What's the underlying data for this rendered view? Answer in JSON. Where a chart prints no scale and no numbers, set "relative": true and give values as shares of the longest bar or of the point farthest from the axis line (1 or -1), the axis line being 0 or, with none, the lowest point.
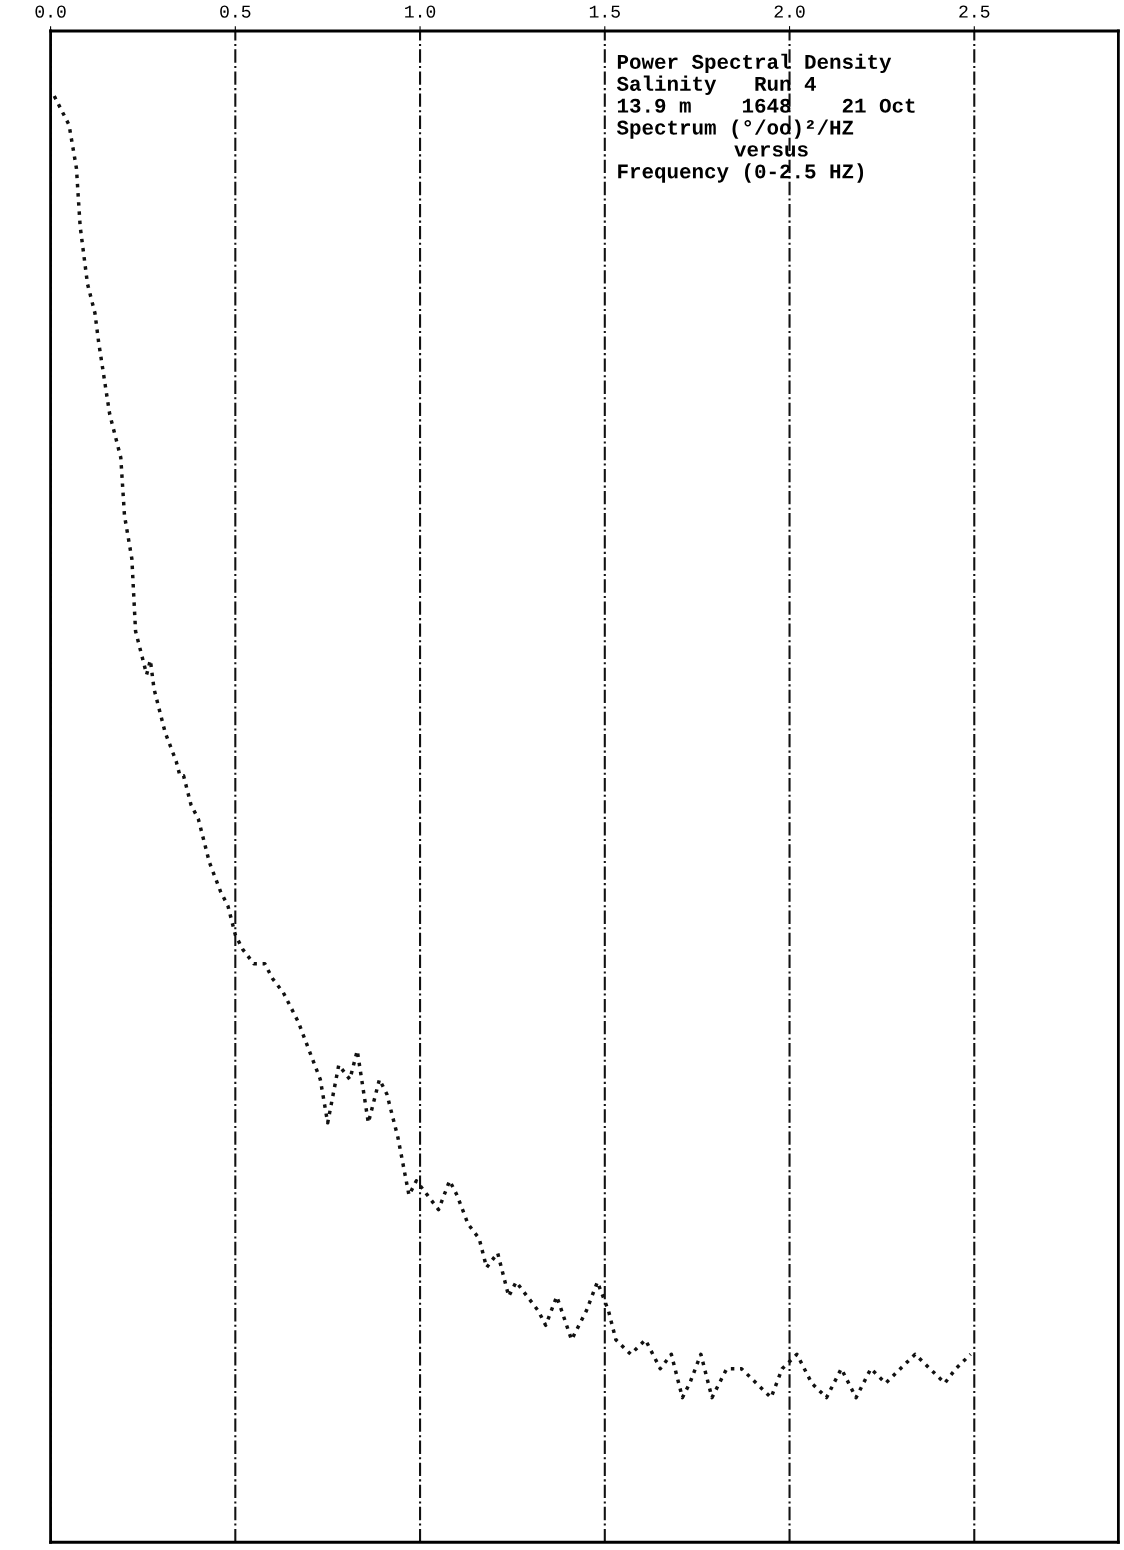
{
  "chart_data": {
    "type": "line",
    "title": "Power Spectral Density",
    "annotations": [
      "Salinity   Run 4",
      "13.9 m    1648    21 Oct",
      "Spectrum (°/oo)²/HZ",
      "versus",
      "Frequency (0-2.5 HZ)"
    ],
    "relative": true,
    "x": [
      0.01,
      0.03,
      0.05,
      0.07,
      0.08,
      0.1,
      0.12,
      0.13,
      0.16,
      0.17,
      0.19,
      0.2,
      0.22,
      0.23,
      0.24,
      0.26,
      0.27,
      0.28,
      0.3,
      0.31,
      0.34,
      0.35,
      0.36,
      0.38,
      0.4,
      0.43,
      0.46,
      0.48,
      0.5,
      0.52,
      0.55,
      0.58,
      0.6,
      0.63,
      0.67,
      0.7,
      0.73,
      0.75,
      0.78,
      0.81,
      0.83,
      0.86,
      0.89,
      0.91,
      0.94,
      0.97,
      0.99,
      1.02,
      1.05,
      1.08,
      1.1,
      1.13,
      1.16,
      1.18,
      1.21,
      1.24,
      1.26,
      1.29,
      1.32,
      1.34,
      1.37,
      1.41,
      1.45,
      1.48,
      1.51,
      1.53,
      1.57,
      1.61,
      1.65,
      1.68,
      1.71,
      1.73,
      1.76,
      1.79,
      1.83,
      1.87,
      1.91,
      1.95,
      1.98,
      2.02,
      2.06,
      2.1,
      2.14,
      2.18,
      2.22,
      2.26,
      2.3,
      2.34,
      2.38,
      2.42,
      2.45,
      2.49
    ],
    "series": [
      {
        "color": "#111111",
        "values": [
          1.0,
          0.99,
          0.98,
          0.95,
          0.91,
          0.87,
          0.85,
          0.83,
          0.78,
          0.77,
          0.75,
          0.71,
          0.68,
          0.63,
          0.62,
          0.6,
          0.61,
          0.59,
          0.57,
          0.56,
          0.54,
          0.53,
          0.53,
          0.51,
          0.5,
          0.47,
          0.45,
          0.44,
          0.42,
          0.41,
          0.4,
          0.4,
          0.39,
          0.38,
          0.36,
          0.34,
          0.32,
          0.29,
          0.33,
          0.32,
          0.34,
          0.29,
          0.32,
          0.31,
          0.28,
          0.24,
          0.25,
          0.24,
          0.23,
          0.25,
          0.24,
          0.22,
          0.21,
          0.19,
          0.2,
          0.17,
          0.18,
          0.17,
          0.16,
          0.15,
          0.17,
          0.14,
          0.16,
          0.18,
          0.16,
          0.14,
          0.13,
          0.14,
          0.12,
          0.13,
          0.1,
          0.11,
          0.13,
          0.1,
          0.12,
          0.12,
          0.11,
          0.1,
          0.12,
          0.13,
          0.11,
          0.1,
          0.12,
          0.1,
          0.12,
          0.11,
          0.12,
          0.13,
          0.12,
          0.11,
          0.12,
          0.13
        ]
      }
    ],
    "xlim": [
      0,
      2.89
    ],
    "xticks": [
      {
        "value": 0,
        "label": "0.0"
      },
      {
        "value": 0.5,
        "label": "0.5"
      },
      {
        "value": 1.0,
        "label": "1.0"
      },
      {
        "value": 1.5,
        "label": "1.5"
      },
      {
        "value": 2.0,
        "label": "2.0"
      },
      {
        "value": 2.5,
        "label": "2.5"
      }
    ],
    "grid": "x",
    "marker": "none",
    "line_style": "dotted"
  }
}
